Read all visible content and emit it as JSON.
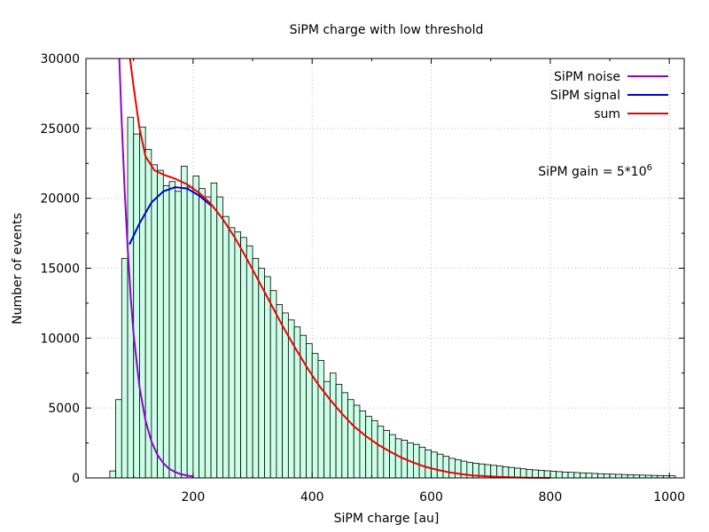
{
  "chart_data": {
    "type": "bar",
    "title": "SiPM charge with low threshold",
    "xlabel": "SiPM charge [au]",
    "ylabel": "Number of events",
    "xlim": [
      20,
      1025
    ],
    "ylim": [
      0,
      30000
    ],
    "grid": true,
    "x_ticks": [
      200,
      400,
      600,
      800,
      1000
    ],
    "y_ticks": [
      0,
      5000,
      10000,
      15000,
      20000,
      25000,
      30000
    ],
    "bin_width": 10,
    "bin_start": 60,
    "histogram_values": [
      500,
      5600,
      15700,
      25800,
      24600,
      25100,
      23500,
      22400,
      22000,
      20900,
      21200,
      20500,
      22300,
      20800,
      21600,
      20700,
      20100,
      21100,
      20100,
      18700,
      17900,
      17600,
      17200,
      16600,
      15700,
      15000,
      14400,
      13400,
      12400,
      11800,
      11300,
      10800,
      10200,
      9600,
      8900,
      8400,
      6900,
      7500,
      6700,
      6100,
      5600,
      5200,
      4800,
      4400,
      4100,
      3700,
      3400,
      3100,
      2800,
      2700,
      2500,
      2400,
      2200,
      2000,
      1850,
      1700,
      1550,
      1400,
      1300,
      1200,
      1100,
      1050,
      1000,
      950,
      900,
      850,
      800,
      750,
      700,
      650,
      600,
      570,
      540,
      510,
      480,
      450,
      420,
      400,
      380,
      360,
      340,
      320,
      300,
      285,
      270,
      255,
      240,
      225,
      210,
      200,
      190,
      180,
      170,
      160,
      150
    ],
    "histogram_fill": "#ccffe8",
    "series": [
      {
        "name": "SiPM noise",
        "color": "#9400d3",
        "x": [
          76,
          80,
          85,
          90,
          95,
          100,
          110,
          120,
          130,
          140,
          150,
          160,
          170,
          180,
          190,
          200
        ],
        "y": [
          30000,
          25500,
          20500,
          16500,
          13000,
          10300,
          6500,
          4100,
          2600,
          1650,
          1050,
          650,
          420,
          260,
          165,
          100
        ]
      },
      {
        "name": "SiPM signal",
        "color": "#0000cc",
        "x": [
          93,
          110,
          130,
          150,
          170,
          190,
          210,
          230
        ],
        "y": [
          16700,
          18200,
          19700,
          20500,
          20800,
          20700,
          20200,
          19500
        ]
      },
      {
        "name": "sum",
        "color": "#ee0000",
        "x": [
          94,
          100,
          110,
          120,
          135,
          150,
          170,
          190,
          210,
          230,
          250,
          270,
          290,
          310,
          330,
          350,
          370,
          390,
          410,
          430,
          450,
          470,
          490,
          510,
          530,
          550,
          570,
          590,
          610,
          630,
          650,
          670,
          700,
          730,
          760,
          800
        ],
        "y": [
          30000,
          28000,
          25000,
          23000,
          22000,
          21700,
          21400,
          21000,
          20400,
          19600,
          18500,
          17200,
          15700,
          14100,
          12500,
          10900,
          9400,
          8000,
          6700,
          5600,
          4600,
          3700,
          3000,
          2400,
          1900,
          1450,
          1100,
          800,
          580,
          400,
          280,
          180,
          100,
          50,
          20,
          0
        ]
      }
    ],
    "legend": [
      "SiPM noise",
      "SiPM signal",
      "sum"
    ],
    "legend_position": "top-right",
    "annotation": {
      "text": "SiPM gain = 5*10",
      "superscript": "6"
    }
  }
}
